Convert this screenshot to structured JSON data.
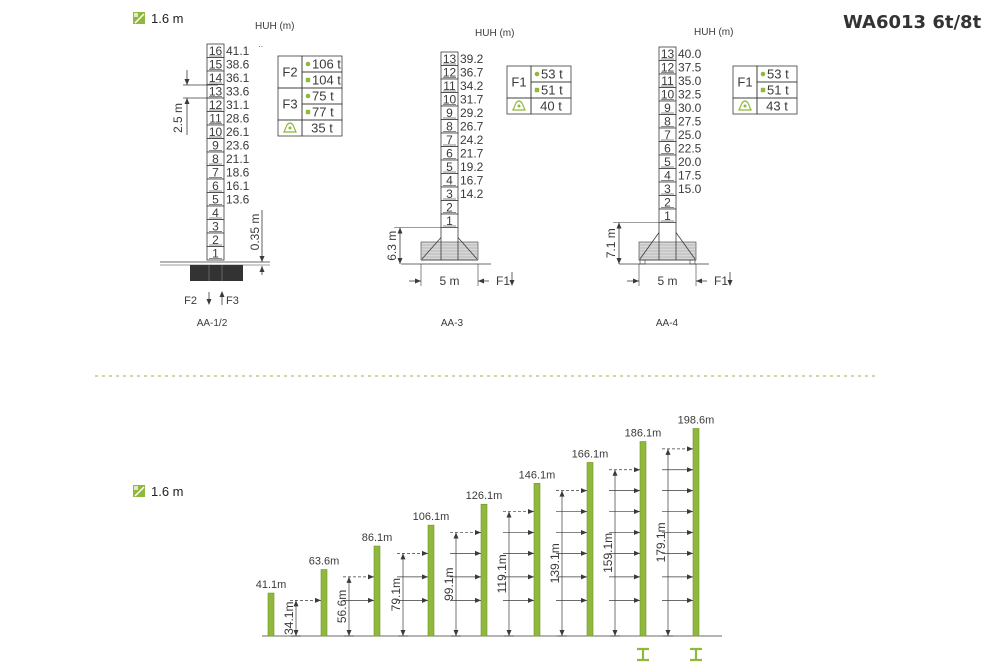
{
  "title": "WA6013 6t/8t",
  "colors": {
    "accent": "#8fb83c",
    "accent_dark": "#6f9426",
    "line": "#3a3a3a"
  },
  "top_section": {
    "section_size_label": "1.6 m",
    "section_size_icon": "mast-section-icon",
    "diagrams": [
      {
        "caption": "AA-1/2",
        "huh_label": "HUH (m)",
        "section_count": 16,
        "heights": [
          "41.1",
          "38.6",
          "36.1",
          "33.6",
          "31.1",
          "28.6",
          "26.1",
          "23.6",
          "21.1",
          "18.6",
          "16.1",
          "13.6"
        ],
        "top_marker": "··",
        "dim_section": "2.5 m",
        "dim_foundation": "0.35 m",
        "force_labels": [
          "F2",
          "F3"
        ],
        "loads": [
          {
            "force": "F2",
            "values": [
              {
                "marker": "circle",
                "text": "106 t"
              },
              {
                "marker": "square",
                "text": "104 t"
              }
            ]
          },
          {
            "force": "F3",
            "values": [
              {
                "marker": "circle",
                "text": "75 t"
              },
              {
                "marker": "square",
                "text": "77 t"
              }
            ]
          }
        ],
        "weight": "35 t",
        "weight_icon": "weight-icon"
      },
      {
        "caption": "AA-3",
        "huh_label": "HUH (m)",
        "section_count": 13,
        "heights": [
          "39.2",
          "36.7",
          "34.2",
          "31.7",
          "29.2",
          "26.7",
          "24.2",
          "21.7",
          "19.2",
          "16.7",
          "14.2"
        ],
        "dim_base_height": "6.3 m",
        "dim_base_width": "5 m",
        "force_labels": [
          "F1"
        ],
        "loads": [
          {
            "force": "F1",
            "values": [
              {
                "marker": "circle",
                "text": "53 t"
              },
              {
                "marker": "square",
                "text": "51 t"
              }
            ]
          }
        ],
        "weight": "40 t",
        "weight_icon": "weight-icon"
      },
      {
        "caption": "AA-4",
        "huh_label": "HUH (m)",
        "section_count": 13,
        "heights": [
          "40.0",
          "37.5",
          "35.0",
          "32.5",
          "30.0",
          "27.5",
          "25.0",
          "22.5",
          "20.0",
          "17.5",
          "15.0"
        ],
        "dim_base_height": "7.1 m",
        "dim_base_width": "5 m",
        "force_labels": [
          "F1"
        ],
        "loads": [
          {
            "force": "F1",
            "values": [
              {
                "marker": "circle",
                "text": "53 t"
              },
              {
                "marker": "square",
                "text": "51 t"
              }
            ]
          }
        ],
        "weight": "43 t",
        "weight_icon": "weight-icon"
      }
    ]
  },
  "bottom_section": {
    "section_size_label": "1.6 m",
    "towers": [
      {
        "height_m": 41.1,
        "label": "41.1m",
        "anchor": null,
        "ties_m": []
      },
      {
        "height_m": 63.6,
        "label": "63.6m",
        "anchor": "34.1m",
        "ties_m": [
          34.1
        ]
      },
      {
        "height_m": 86.1,
        "label": "86.1m",
        "anchor": "56.6m",
        "ties_m": [
          34.1,
          56.6
        ]
      },
      {
        "height_m": 106.1,
        "label": "106.1m",
        "anchor": "79.1m",
        "ties_m": [
          34.1,
          56.6,
          79.1
        ]
      },
      {
        "height_m": 126.1,
        "label": "126.1m",
        "anchor": "99.1m",
        "ties_m": [
          34.1,
          56.6,
          79.1,
          99.1
        ]
      },
      {
        "height_m": 146.1,
        "label": "146.1m",
        "anchor": "119.1m",
        "ties_m": [
          34.1,
          56.6,
          79.1,
          99.1,
          119.1
        ]
      },
      {
        "height_m": 166.1,
        "label": "166.1m",
        "anchor": "139.1m",
        "ties_m": [
          34.1,
          56.6,
          79.1,
          99.1,
          119.1,
          139.1
        ]
      },
      {
        "height_m": 186.1,
        "label": "186.1m",
        "anchor": "159.1m",
        "ties_m": [
          34.1,
          56.6,
          79.1,
          99.1,
          119.1,
          139.1,
          159.1
        ],
        "base_icon": "i-beam-icon"
      },
      {
        "height_m": 198.6,
        "label": "198.6m",
        "anchor": "179.1m",
        "ties_m": [
          34.1,
          56.6,
          79.1,
          99.1,
          119.1,
          139.1,
          159.1,
          179.1
        ],
        "base_icon": "i-beam-icon"
      }
    ]
  }
}
